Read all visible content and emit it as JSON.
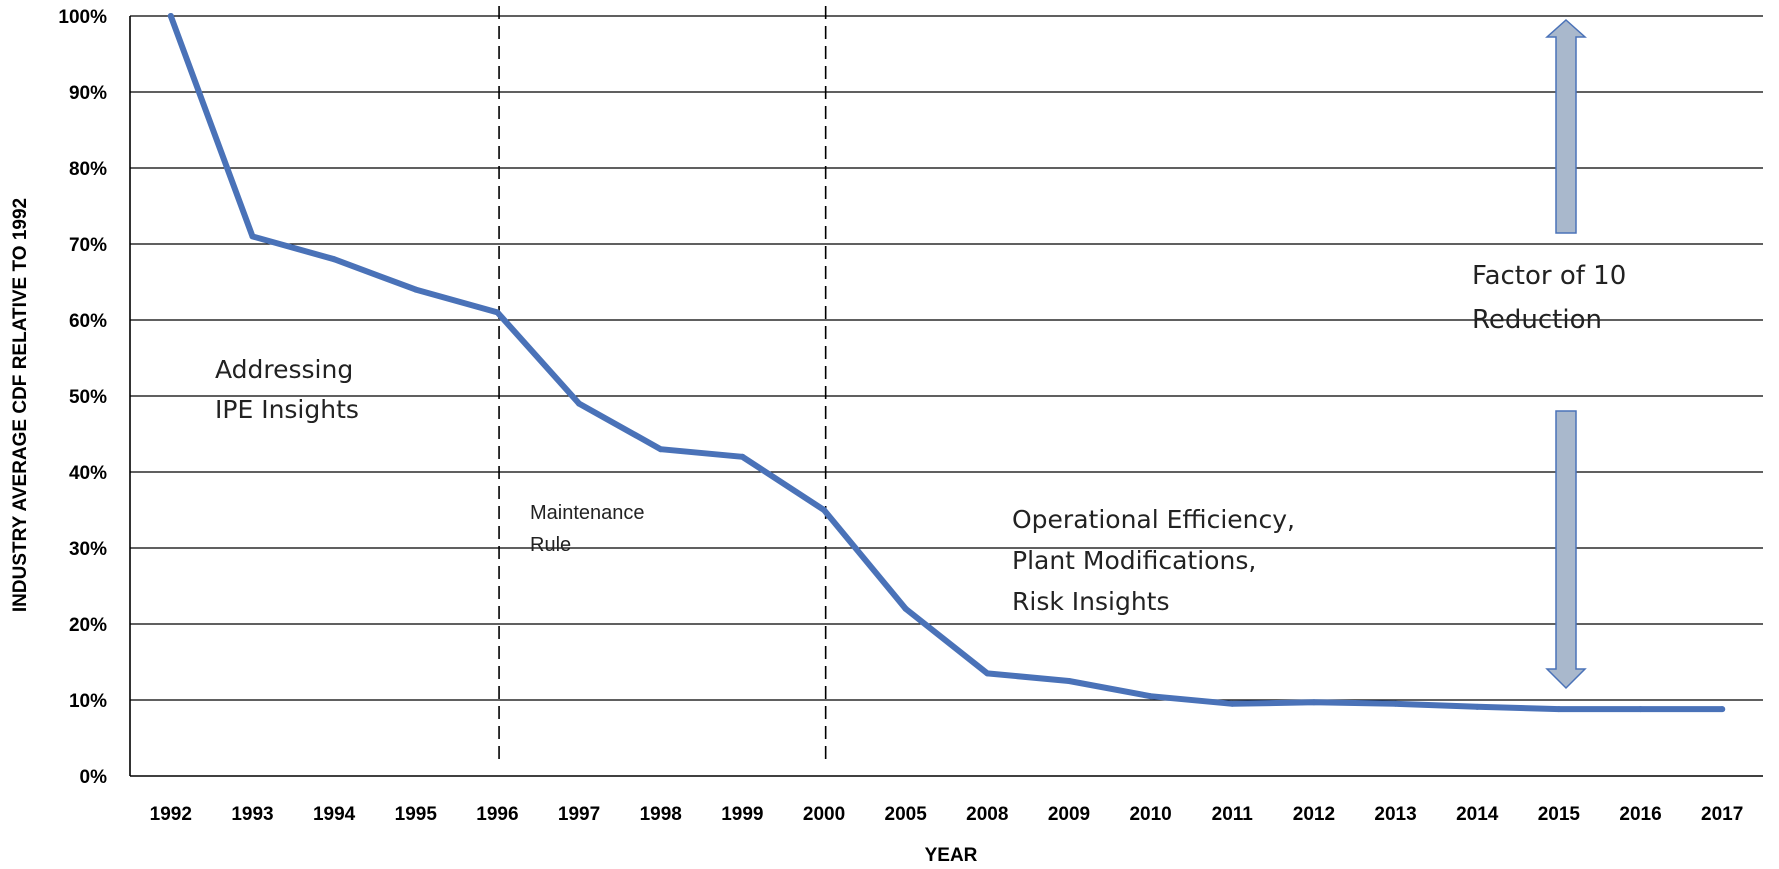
{
  "chart_data": {
    "type": "line",
    "xlabel": "YEAR",
    "ylabel": "INDUSTRY AVERAGE CDF RELATIVE TO 1992",
    "ylim": [
      0,
      100
    ],
    "y_ticks": [
      "0%",
      "10%",
      "20%",
      "30%",
      "40%",
      "50%",
      "60%",
      "70%",
      "80%",
      "90%",
      "100%"
    ],
    "grid": "horizontal",
    "categories": [
      "1992",
      "1993",
      "1994",
      "1995",
      "1996",
      "1997",
      "1998",
      "1999",
      "2000",
      "2005",
      "2008",
      "2009",
      "2010",
      "2011",
      "2012",
      "2013",
      "2014",
      "2015",
      "2016",
      "2017"
    ],
    "series": [
      {
        "color": "#4a72b8",
        "values": [
          100,
          71,
          68,
          64,
          61,
          49,
          43,
          42,
          35,
          22,
          13.5,
          12.5,
          10.5,
          9.5,
          9.7,
          9.5,
          9.1,
          8.8,
          8.8,
          8.8
        ]
      }
    ],
    "dividers_after_category": [
      "1996",
      "2000"
    ],
    "annotations": {
      "ipe": [
        "Addressing",
        "IPE Insights"
      ],
      "maintenance": [
        "Maintenance",
        "Rule"
      ],
      "operational": [
        "Operational Efficiency,",
        "Plant Modifications,",
        "Risk Insights"
      ],
      "factor": [
        "Factor of 10",
        "Reduction"
      ]
    },
    "arrow_color": "#a9b8cc",
    "arrow_stroke": "#4a72b8"
  }
}
